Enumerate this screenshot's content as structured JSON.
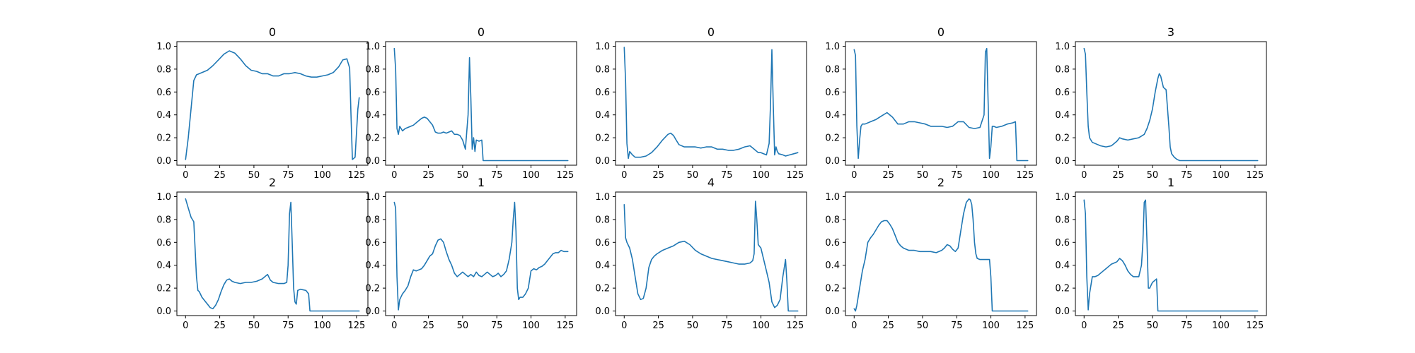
{
  "colors": {
    "series": "#1f77b4",
    "frame": "#000000",
    "background": "#ffffff"
  },
  "chart_data": [
    {
      "type": "line",
      "title": "0",
      "x": [
        0,
        2,
        4,
        6,
        8,
        12,
        16,
        20,
        24,
        28,
        32,
        36,
        40,
        44,
        48,
        52,
        56,
        60,
        64,
        68,
        72,
        76,
        80,
        84,
        88,
        92,
        96,
        100,
        104,
        108,
        112,
        115,
        118,
        120,
        121,
        122,
        124,
        126,
        127
      ],
      "y": [
        0.01,
        0.2,
        0.45,
        0.7,
        0.75,
        0.77,
        0.79,
        0.83,
        0.88,
        0.93,
        0.96,
        0.94,
        0.89,
        0.83,
        0.79,
        0.78,
        0.76,
        0.76,
        0.74,
        0.74,
        0.76,
        0.76,
        0.77,
        0.76,
        0.74,
        0.73,
        0.73,
        0.74,
        0.75,
        0.77,
        0.82,
        0.88,
        0.89,
        0.81,
        0.4,
        0.01,
        0.03,
        0.45,
        0.55
      ],
      "xticks": [
        0,
        25,
        50,
        75,
        100,
        125
      ],
      "yticks": [
        0.0,
        0.2,
        0.4,
        0.6,
        0.8,
        1.0
      ],
      "xlim": [
        -6.35,
        133.35
      ],
      "ylim": [
        -0.04,
        1.04
      ]
    },
    {
      "type": "line",
      "title": "0",
      "x": [
        0,
        1,
        2,
        3,
        4,
        6,
        8,
        10,
        12,
        14,
        16,
        18,
        20,
        22,
        24,
        26,
        28,
        30,
        32,
        34,
        36,
        38,
        40,
        42,
        44,
        46,
        48,
        50,
        52,
        54,
        55,
        56,
        57,
        58,
        59,
        60,
        62,
        64,
        65,
        66,
        70,
        80,
        100,
        127
      ],
      "y": [
        0.98,
        0.8,
        0.28,
        0.23,
        0.3,
        0.26,
        0.28,
        0.29,
        0.3,
        0.31,
        0.33,
        0.35,
        0.37,
        0.38,
        0.37,
        0.34,
        0.31,
        0.25,
        0.24,
        0.24,
        0.25,
        0.24,
        0.25,
        0.26,
        0.23,
        0.23,
        0.22,
        0.18,
        0.1,
        0.4,
        0.9,
        0.55,
        0.1,
        0.2,
        0.08,
        0.18,
        0.17,
        0.18,
        0.0,
        0.0,
        0.0,
        0.0,
        0.0,
        0.0
      ],
      "xticks": [
        0,
        25,
        50,
        75,
        100,
        125
      ],
      "yticks": [
        0.0,
        0.2,
        0.4,
        0.6,
        0.8,
        1.0
      ],
      "xlim": [
        -6.35,
        133.35
      ],
      "ylim": [
        -0.04,
        1.04
      ]
    },
    {
      "type": "line",
      "title": "0",
      "x": [
        0,
        1,
        2,
        3,
        4,
        6,
        8,
        12,
        16,
        20,
        24,
        28,
        32,
        34,
        36,
        38,
        40,
        44,
        48,
        52,
        56,
        60,
        64,
        68,
        72,
        76,
        80,
        84,
        88,
        92,
        95,
        98,
        100,
        104,
        106,
        107,
        108,
        109,
        110,
        111,
        112,
        113,
        116,
        118,
        121,
        124,
        127
      ],
      "y": [
        0.99,
        0.7,
        0.15,
        0.02,
        0.08,
        0.05,
        0.03,
        0.03,
        0.04,
        0.07,
        0.12,
        0.18,
        0.23,
        0.24,
        0.22,
        0.18,
        0.14,
        0.12,
        0.12,
        0.12,
        0.11,
        0.12,
        0.12,
        0.1,
        0.1,
        0.09,
        0.09,
        0.1,
        0.12,
        0.13,
        0.1,
        0.07,
        0.07,
        0.05,
        0.15,
        0.5,
        0.97,
        0.5,
        0.05,
        0.12,
        0.08,
        0.06,
        0.05,
        0.04,
        0.05,
        0.06,
        0.07
      ],
      "xticks": [
        0,
        25,
        50,
        75,
        100,
        125
      ],
      "yticks": [
        0.0,
        0.2,
        0.4,
        0.6,
        0.8,
        1.0
      ],
      "xlim": [
        -6.35,
        133.35
      ],
      "ylim": [
        -0.04,
        1.04
      ]
    },
    {
      "type": "line",
      "title": "0",
      "x": [
        0,
        1,
        2,
        3,
        4,
        5,
        6,
        8,
        12,
        16,
        20,
        24,
        28,
        32,
        36,
        40,
        44,
        48,
        52,
        56,
        60,
        64,
        68,
        72,
        76,
        80,
        84,
        88,
        92,
        95,
        96,
        97,
        98,
        99,
        100,
        101,
        102,
        104,
        108,
        112,
        116,
        118,
        119,
        120,
        124,
        127
      ],
      "y": [
        0.97,
        0.92,
        0.3,
        0.02,
        0.18,
        0.3,
        0.32,
        0.32,
        0.34,
        0.36,
        0.39,
        0.42,
        0.38,
        0.32,
        0.32,
        0.34,
        0.34,
        0.33,
        0.32,
        0.3,
        0.3,
        0.3,
        0.29,
        0.3,
        0.34,
        0.34,
        0.29,
        0.28,
        0.29,
        0.4,
        0.95,
        0.98,
        0.5,
        0.02,
        0.12,
        0.3,
        0.3,
        0.29,
        0.3,
        0.32,
        0.33,
        0.34,
        0.0,
        0.0,
        0.0,
        0.0
      ],
      "xticks": [
        0,
        25,
        50,
        75,
        100,
        125
      ],
      "yticks": [
        0.0,
        0.2,
        0.4,
        0.6,
        0.8,
        1.0
      ],
      "xlim": [
        -6.35,
        133.35
      ],
      "ylim": [
        -0.04,
        1.04
      ]
    },
    {
      "type": "line",
      "title": "3",
      "x": [
        0,
        1,
        2,
        3,
        4,
        6,
        8,
        12,
        16,
        20,
        24,
        26,
        28,
        32,
        36,
        40,
        44,
        46,
        48,
        50,
        52,
        54,
        55,
        56,
        58,
        60,
        62,
        63,
        64,
        66,
        68,
        70,
        72,
        80,
        100,
        127
      ],
      "y": [
        0.98,
        0.93,
        0.6,
        0.3,
        0.2,
        0.16,
        0.15,
        0.13,
        0.12,
        0.13,
        0.17,
        0.2,
        0.19,
        0.18,
        0.19,
        0.2,
        0.23,
        0.28,
        0.35,
        0.45,
        0.6,
        0.72,
        0.76,
        0.74,
        0.64,
        0.62,
        0.3,
        0.12,
        0.06,
        0.03,
        0.01,
        0.0,
        0.0,
        0.0,
        0.0,
        0.0
      ],
      "xticks": [
        0,
        25,
        50,
        75,
        100,
        125
      ],
      "yticks": [
        0.0,
        0.2,
        0.4,
        0.6,
        0.8,
        1.0
      ],
      "xlim": [
        -6.35,
        133.35
      ],
      "ylim": [
        -0.04,
        1.04
      ]
    },
    {
      "type": "line",
      "title": "2",
      "x": [
        0,
        2,
        4,
        6,
        8,
        9,
        10,
        12,
        14,
        16,
        18,
        20,
        22,
        24,
        26,
        28,
        30,
        32,
        34,
        36,
        40,
        44,
        48,
        52,
        56,
        58,
        60,
        62,
        64,
        68,
        72,
        74,
        75,
        76,
        77,
        78,
        79,
        80,
        81,
        82,
        84,
        88,
        90,
        91,
        95,
        100,
        110,
        127
      ],
      "y": [
        0.98,
        0.9,
        0.82,
        0.78,
        0.3,
        0.18,
        0.17,
        0.12,
        0.09,
        0.06,
        0.03,
        0.02,
        0.05,
        0.1,
        0.17,
        0.23,
        0.27,
        0.28,
        0.26,
        0.25,
        0.24,
        0.25,
        0.25,
        0.26,
        0.28,
        0.3,
        0.32,
        0.27,
        0.25,
        0.24,
        0.24,
        0.25,
        0.4,
        0.85,
        0.95,
        0.6,
        0.2,
        0.08,
        0.06,
        0.18,
        0.19,
        0.18,
        0.15,
        0.0,
        0.0,
        0.0,
        0.0,
        0.0
      ],
      "xticks": [
        0,
        25,
        50,
        75,
        100,
        125
      ],
      "yticks": [
        0.0,
        0.2,
        0.4,
        0.6,
        0.8,
        1.0
      ],
      "xlim": [
        -6.35,
        133.35
      ],
      "ylim": [
        -0.04,
        1.04
      ]
    },
    {
      "type": "line",
      "title": "1",
      "x": [
        0,
        1,
        2,
        3,
        4,
        6,
        8,
        10,
        12,
        14,
        16,
        18,
        20,
        22,
        24,
        26,
        28,
        30,
        32,
        34,
        36,
        38,
        40,
        42,
        44,
        46,
        48,
        50,
        52,
        54,
        56,
        58,
        60,
        62,
        64,
        66,
        68,
        70,
        72,
        74,
        76,
        78,
        80,
        82,
        84,
        86,
        87,
        88,
        89,
        90,
        91,
        92,
        94,
        96,
        98,
        100,
        102,
        104,
        106,
        108,
        110,
        112,
        114,
        116,
        118,
        120,
        122,
        124,
        126,
        127
      ],
      "y": [
        0.95,
        0.9,
        0.3,
        0.01,
        0.1,
        0.15,
        0.18,
        0.22,
        0.3,
        0.36,
        0.35,
        0.36,
        0.37,
        0.4,
        0.44,
        0.48,
        0.5,
        0.57,
        0.62,
        0.63,
        0.6,
        0.52,
        0.45,
        0.4,
        0.33,
        0.3,
        0.32,
        0.34,
        0.32,
        0.3,
        0.32,
        0.3,
        0.34,
        0.31,
        0.3,
        0.32,
        0.34,
        0.32,
        0.3,
        0.31,
        0.33,
        0.3,
        0.32,
        0.35,
        0.45,
        0.6,
        0.8,
        0.95,
        0.7,
        0.2,
        0.1,
        0.12,
        0.12,
        0.15,
        0.2,
        0.35,
        0.37,
        0.36,
        0.38,
        0.39,
        0.41,
        0.44,
        0.47,
        0.5,
        0.51,
        0.51,
        0.53,
        0.52,
        0.52,
        0.52
      ],
      "xticks": [
        0,
        25,
        50,
        75,
        100,
        125
      ],
      "yticks": [
        0.0,
        0.2,
        0.4,
        0.6,
        0.8,
        1.0
      ],
      "xlim": [
        -6.35,
        133.35
      ],
      "ylim": [
        -0.04,
        1.04
      ]
    },
    {
      "type": "line",
      "title": "4",
      "x": [
        0,
        1,
        2,
        4,
        6,
        8,
        10,
        12,
        14,
        16,
        18,
        20,
        22,
        24,
        28,
        32,
        36,
        40,
        44,
        48,
        52,
        56,
        60,
        64,
        68,
        72,
        76,
        80,
        84,
        88,
        92,
        94,
        95,
        96,
        97,
        98,
        100,
        102,
        104,
        106,
        108,
        110,
        112,
        114,
        116,
        118,
        119,
        120,
        124,
        127
      ],
      "y": [
        0.93,
        0.64,
        0.6,
        0.55,
        0.45,
        0.3,
        0.15,
        0.1,
        0.11,
        0.2,
        0.38,
        0.45,
        0.48,
        0.5,
        0.53,
        0.55,
        0.57,
        0.6,
        0.61,
        0.58,
        0.53,
        0.5,
        0.48,
        0.46,
        0.45,
        0.44,
        0.43,
        0.42,
        0.41,
        0.41,
        0.42,
        0.44,
        0.5,
        0.96,
        0.8,
        0.58,
        0.55,
        0.45,
        0.35,
        0.25,
        0.08,
        0.03,
        0.05,
        0.1,
        0.3,
        0.45,
        0.25,
        0.0,
        0.0,
        0.0
      ],
      "xticks": [
        0,
        25,
        50,
        75,
        100,
        125
      ],
      "yticks": [
        0.0,
        0.2,
        0.4,
        0.6,
        0.8,
        1.0
      ],
      "xlim": [
        -6.35,
        133.35
      ],
      "ylim": [
        -0.04,
        1.04
      ]
    },
    {
      "type": "line",
      "title": "2",
      "x": [
        0,
        1,
        2,
        4,
        6,
        8,
        10,
        12,
        14,
        16,
        18,
        20,
        22,
        24,
        26,
        28,
        30,
        32,
        34,
        36,
        38,
        40,
        44,
        48,
        52,
        56,
        60,
        64,
        66,
        68,
        70,
        72,
        74,
        76,
        78,
        80,
        82,
        84,
        85,
        86,
        87,
        88,
        89,
        90,
        92,
        94,
        96,
        98,
        99,
        100,
        101,
        110,
        127
      ],
      "y": [
        0.02,
        0.0,
        0.05,
        0.2,
        0.35,
        0.45,
        0.6,
        0.64,
        0.67,
        0.71,
        0.75,
        0.78,
        0.79,
        0.79,
        0.76,
        0.72,
        0.66,
        0.6,
        0.57,
        0.55,
        0.54,
        0.53,
        0.53,
        0.52,
        0.52,
        0.52,
        0.51,
        0.53,
        0.55,
        0.58,
        0.57,
        0.54,
        0.52,
        0.55,
        0.7,
        0.85,
        0.95,
        0.98,
        0.97,
        0.93,
        0.8,
        0.6,
        0.5,
        0.46,
        0.45,
        0.45,
        0.45,
        0.45,
        0.45,
        0.3,
        0.0,
        0.0,
        0.0
      ],
      "xticks": [
        0,
        25,
        50,
        75,
        100,
        125
      ],
      "yticks": [
        0.0,
        0.2,
        0.4,
        0.6,
        0.8,
        1.0
      ],
      "xlim": [
        -6.35,
        133.35
      ],
      "ylim": [
        -0.04,
        1.04
      ]
    },
    {
      "type": "line",
      "title": "1",
      "x": [
        0,
        1,
        2,
        3,
        4,
        6,
        8,
        10,
        12,
        14,
        16,
        18,
        20,
        22,
        24,
        26,
        28,
        30,
        32,
        34,
        36,
        38,
        40,
        42,
        43,
        44,
        45,
        46,
        47,
        48,
        50,
        52,
        53,
        54,
        60,
        80,
        100,
        127
      ],
      "y": [
        0.97,
        0.85,
        0.3,
        0.01,
        0.15,
        0.3,
        0.3,
        0.31,
        0.33,
        0.35,
        0.37,
        0.39,
        0.41,
        0.42,
        0.43,
        0.46,
        0.44,
        0.4,
        0.35,
        0.32,
        0.3,
        0.3,
        0.3,
        0.4,
        0.6,
        0.95,
        0.97,
        0.6,
        0.2,
        0.2,
        0.25,
        0.27,
        0.28,
        0.0,
        0.0,
        0.0,
        0.0,
        0.0
      ],
      "xticks": [
        0,
        25,
        50,
        75,
        100,
        125
      ],
      "yticks": [
        0.0,
        0.2,
        0.4,
        0.6,
        0.8,
        1.0
      ],
      "xlim": [
        -6.35,
        133.35
      ],
      "ylim": [
        -0.04,
        1.04
      ]
    }
  ]
}
